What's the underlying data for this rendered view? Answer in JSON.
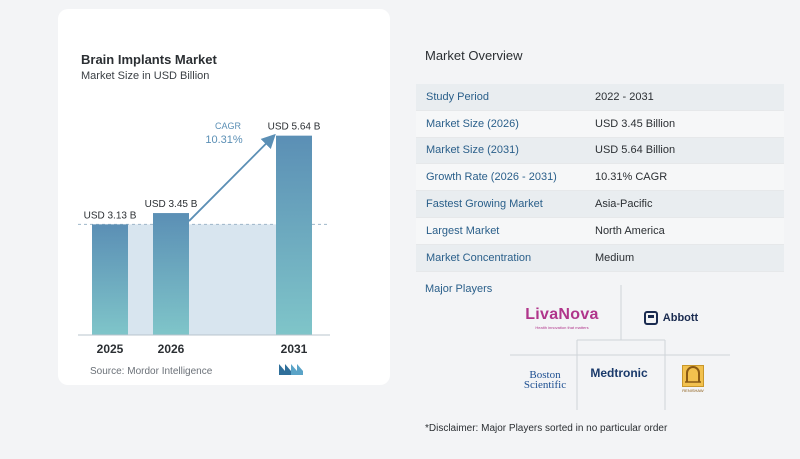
{
  "chart_data": {
    "type": "bar",
    "title": "Brain Implants Market",
    "subtitle": "Market Size in USD Billion",
    "categories": [
      "2025",
      "2026",
      "2031"
    ],
    "values": [
      3.13,
      3.45,
      5.64
    ],
    "data_labels": [
      "USD 3.13 B",
      "USD 3.45 B",
      "USD 5.64 B"
    ],
    "cagr_label": "CAGR",
    "cagr_value": "10.31%",
    "ylim": [
      0,
      5.8
    ],
    "colors": {
      "bar_top": "#5b8fb5",
      "bar_bottom": "#7fc5c9",
      "band": "#d8e5ef",
      "arrow": "#5b8fb5"
    }
  },
  "source": "Source:  Mordor Intelligence",
  "overview": {
    "title": "Market Overview",
    "rows": [
      {
        "label": "Study Period",
        "value": "2022 - 2031"
      },
      {
        "label": "Market Size (2026)",
        "value": "USD 3.45 Billion"
      },
      {
        "label": "Market Size (2031)",
        "value": "USD 5.64 Billion"
      },
      {
        "label": "Growth Rate (2026 - 2031)",
        "value": "10.31% CAGR"
      },
      {
        "label": "Fastest Growing Market",
        "value": "Asia-Pacific"
      },
      {
        "label": "Largest Market",
        "value": "North America"
      },
      {
        "label": "Market Concentration",
        "value": "Medium"
      }
    ]
  },
  "players": {
    "title": "Major Players",
    "logos": {
      "livanova": "LivaNova",
      "livanova_tag": "Health innovation that matters",
      "abbott": "Abbott",
      "boston_1": "Boston",
      "boston_2": "Scientific",
      "medtronic": "Medtronic",
      "renishaw": "RENISHAW"
    }
  },
  "disclaimer": "*Disclaimer: Major Players sorted in no particular order"
}
